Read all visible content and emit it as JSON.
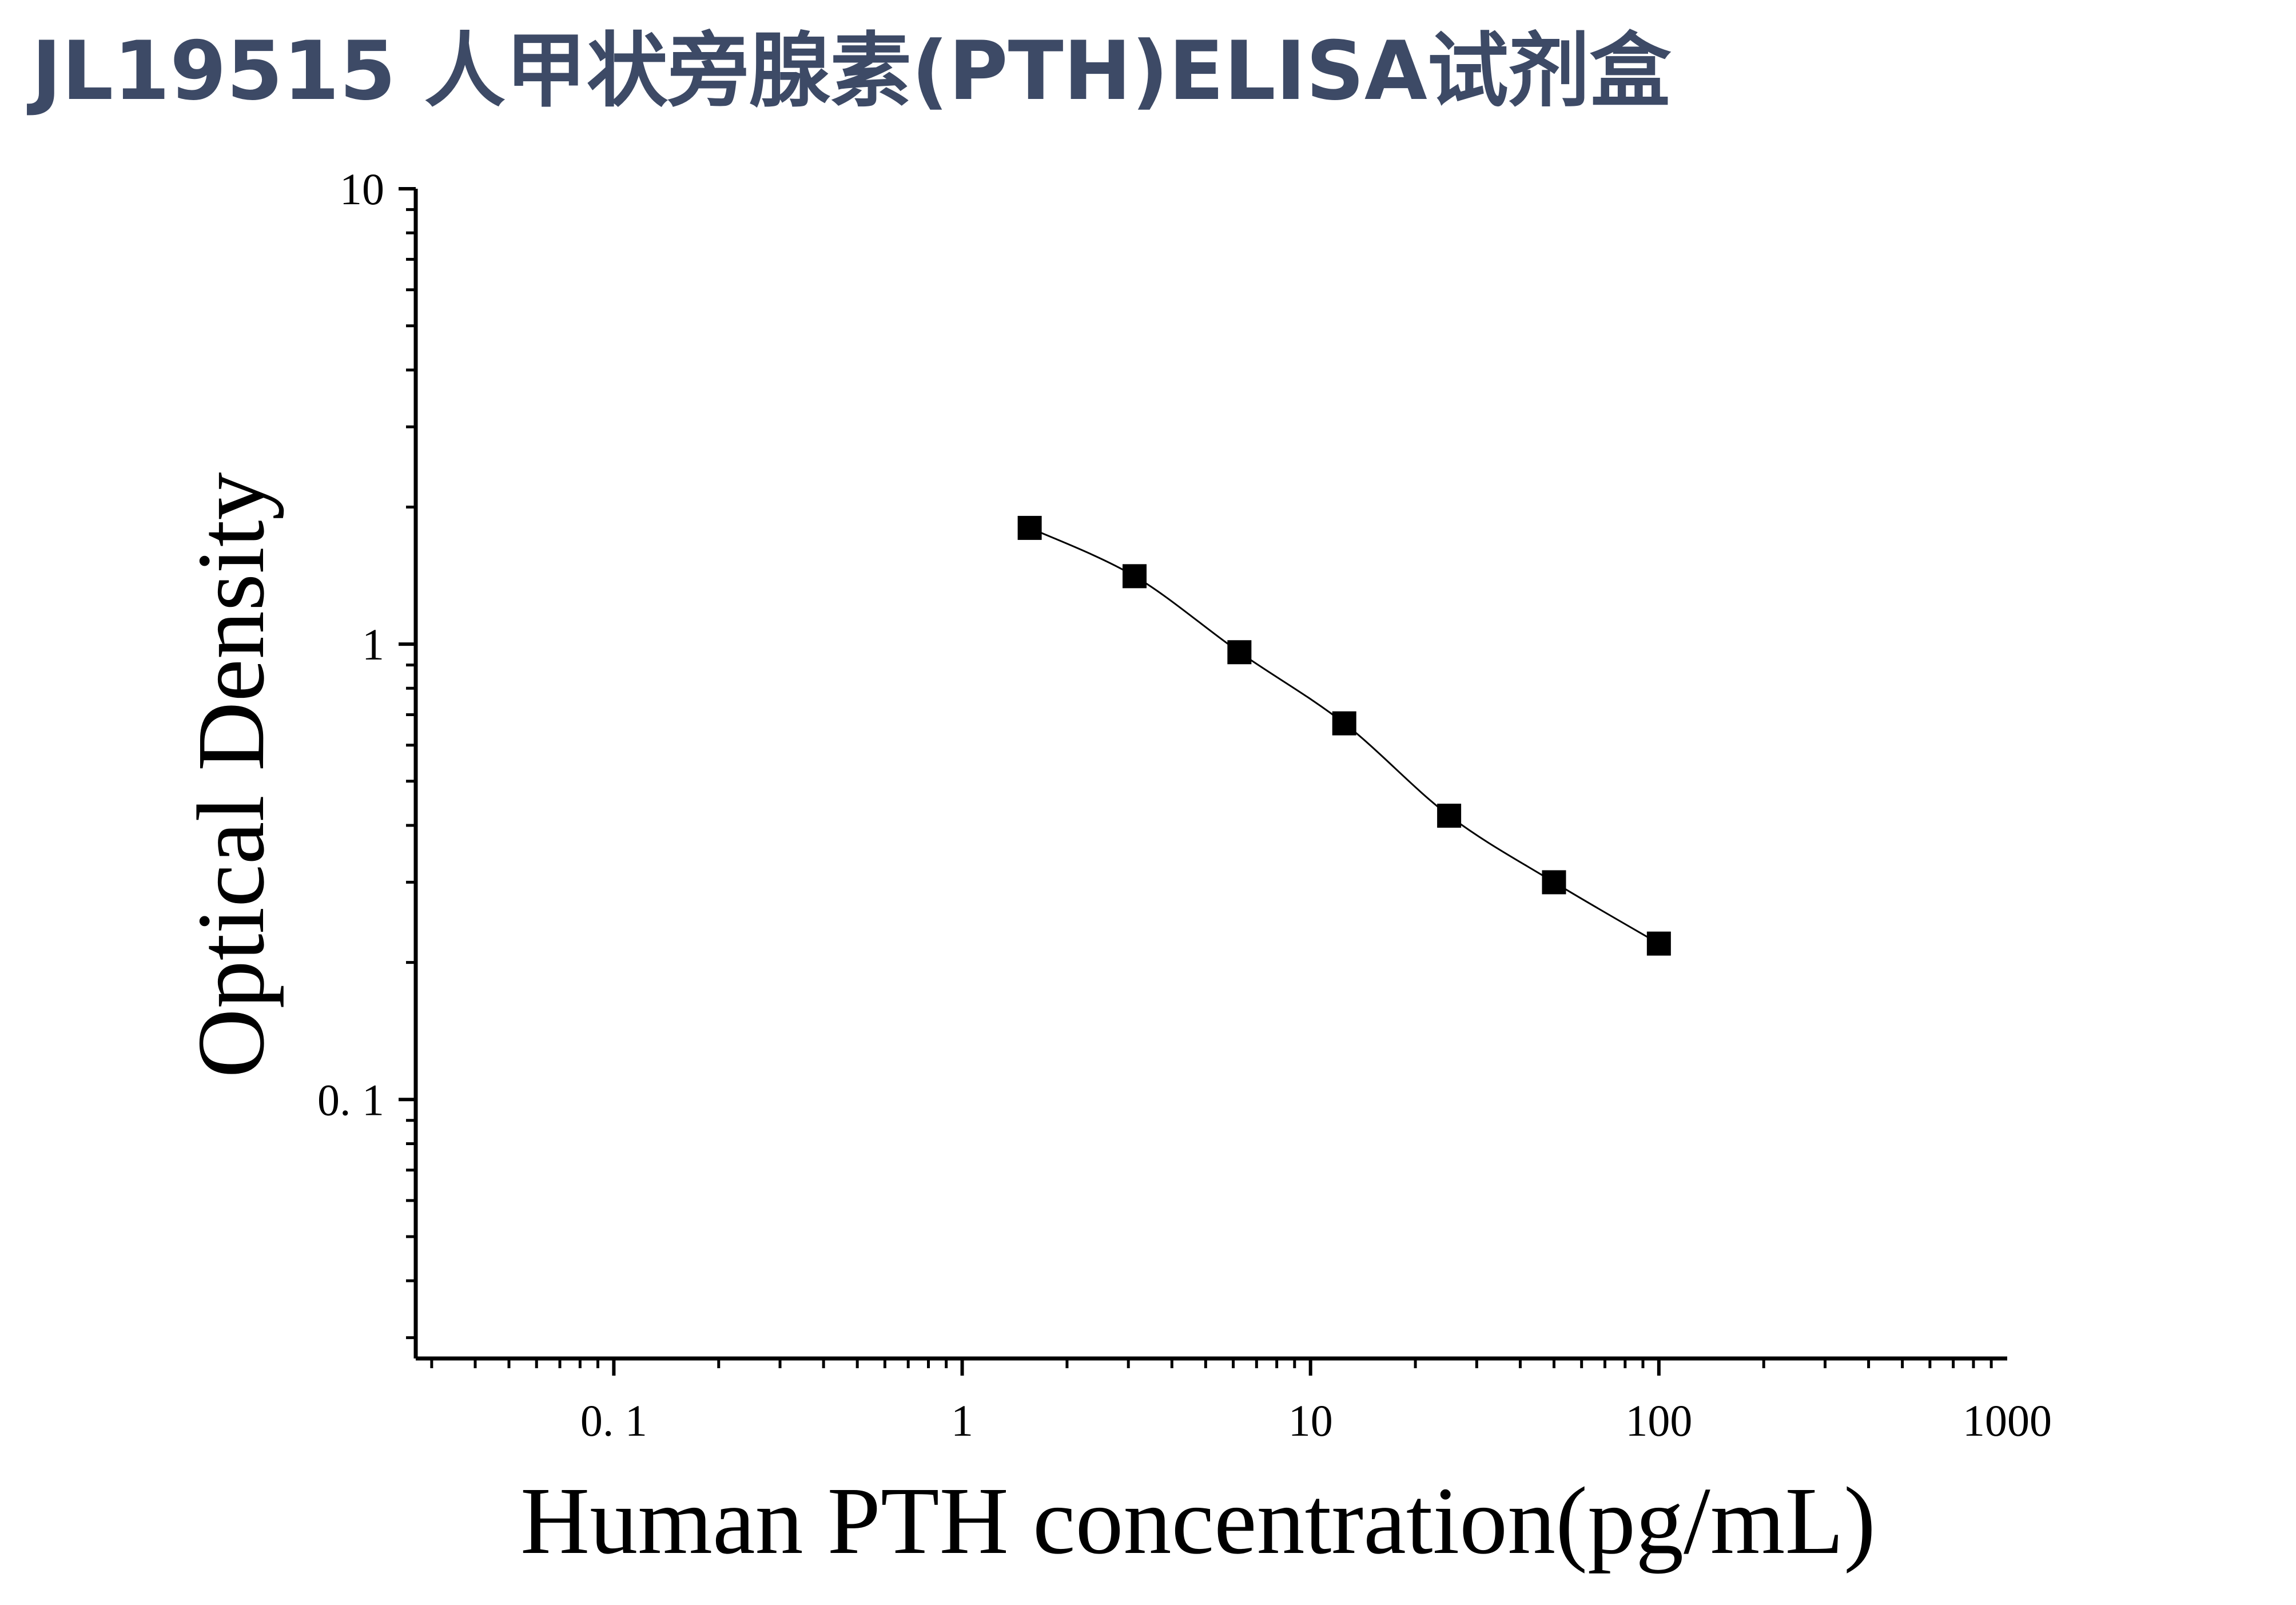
{
  "title": "JL19515 人甲状旁腺素(PTH)ELISA试剂盒",
  "chart_data": {
    "type": "scatter",
    "xscale": "log",
    "yscale": "log",
    "xlabel": "Human PTH concentration(pg/mL)",
    "ylabel": "Optical Density",
    "xlim": [
      0.027,
      1000
    ],
    "ylim": [
      0.027,
      10
    ],
    "x_ticks": [
      0.1,
      1,
      10,
      100,
      1000
    ],
    "x_tick_labels": [
      "0. 1",
      "1",
      "10",
      "100",
      "1000"
    ],
    "y_ticks": [
      0.1,
      1,
      10
    ],
    "y_tick_labels": [
      "0. 1",
      "1",
      "10"
    ],
    "grid": false,
    "colors": {
      "marker": "#000000",
      "line": "#000000"
    },
    "series": [
      {
        "x": [
          1.5625,
          3.125,
          6.25,
          12.5,
          25,
          50,
          100
        ],
        "y": [
          1.8,
          1.41,
          0.96,
          0.67,
          0.42,
          0.3,
          0.22
        ]
      }
    ]
  }
}
